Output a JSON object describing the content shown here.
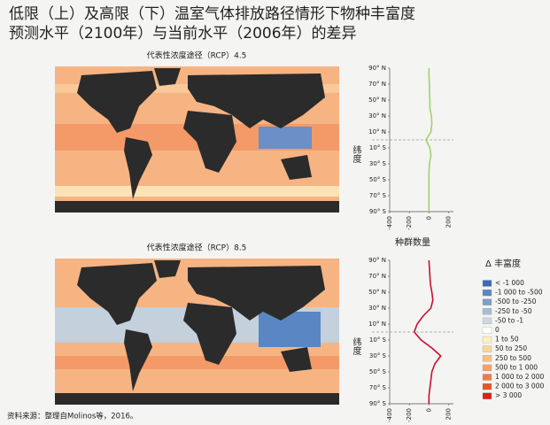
{
  "title_lines": [
    "低限（上）及高限（下）温室气体排放路径情形下物种丰富度",
    "预测水平（2100年）与当前水平（2006年）的差异"
  ],
  "source": "资料来源：整理自Molinos等，2016。",
  "legend": {
    "title": "Δ 丰富度",
    "items": [
      {
        "label": "< -1 000",
        "color": "#3a6db5"
      },
      {
        "label": "-1 000 to -500",
        "color": "#5b86c4"
      },
      {
        "label": "-500 to -250",
        "color": "#7d9fc9"
      },
      {
        "label": "-250 to -50",
        "color": "#a9bcd4"
      },
      {
        "label": "-50 to -1",
        "color": "#cdd6df"
      },
      {
        "label": "0",
        "color": "#ffffff"
      },
      {
        "label": "1 to 50",
        "color": "#fdf0c0"
      },
      {
        "label": "50 to 250",
        "color": "#fbd59a"
      },
      {
        "label": "250 to 500",
        "color": "#f8be85"
      },
      {
        "label": "500 to 1 000",
        "color": "#f4a068"
      },
      {
        "label": "1 000 to 2 000",
        "color": "#ee7a4a"
      },
      {
        "label": "2 000 to 3 000",
        "color": "#e6552f"
      },
      {
        "label": "> 3 000",
        "color": "#d6221a"
      }
    ]
  },
  "chart_data": [
    {
      "type": "line",
      "subtitle": "代表性浓度途径（RCP）4.5",
      "xlabel": "种群数量",
      "ylabel": "纬度",
      "y": [
        90,
        80,
        70,
        60,
        50,
        40,
        30,
        20,
        10,
        0,
        -10,
        -20,
        -30,
        -40,
        -50,
        -60,
        -70,
        -80,
        -90
      ],
      "series": [
        {
          "color": "#9ed36a",
          "values": [
            0,
            0,
            5,
            5,
            10,
            10,
            25,
            30,
            20,
            -30,
            10,
            20,
            5,
            0,
            0,
            0,
            0,
            0,
            0
          ]
        }
      ],
      "xlim": [
        -400,
        250
      ],
      "xticks": [
        -400,
        -200,
        0,
        200
      ],
      "ylim": [
        -90,
        90
      ],
      "hline": 0,
      "yticks": [
        {
          "value": 90,
          "label": "90° N"
        },
        {
          "value": 70,
          "label": "70° N"
        },
        {
          "value": 50,
          "label": "50° N"
        },
        {
          "value": 30,
          "label": "30° N"
        },
        {
          "value": 10,
          "label": "10° N"
        },
        {
          "value": -10,
          "label": "10° S"
        },
        {
          "value": -30,
          "label": "30° S"
        },
        {
          "value": -50,
          "label": "50° S"
        },
        {
          "value": -70,
          "label": "70° S"
        },
        {
          "value": -90,
          "label": "90° S"
        }
      ]
    },
    {
      "type": "line",
      "subtitle": "代表性浓度途径（RCP）8.5",
      "ylabel": "纬度",
      "y": [
        90,
        80,
        70,
        60,
        50,
        40,
        30,
        20,
        10,
        0,
        -10,
        -20,
        -30,
        -40,
        -50,
        -60,
        -70,
        -80,
        -90
      ],
      "series": [
        {
          "color": "#c8102e",
          "values": [
            0,
            5,
            10,
            15,
            30,
            40,
            20,
            -60,
            -120,
            -150,
            -80,
            30,
            120,
            60,
            30,
            20,
            10,
            0,
            0
          ]
        }
      ],
      "xlim": [
        -400,
        250
      ],
      "xticks": [
        -400,
        -200,
        0,
        200
      ],
      "ylim": [
        -90,
        90
      ],
      "hline": 0,
      "yticks": [
        {
          "value": 90,
          "label": "90° N"
        },
        {
          "value": 70,
          "label": "70° N"
        },
        {
          "value": 50,
          "label": "50° N"
        },
        {
          "value": 30,
          "label": "30° N"
        },
        {
          "value": 10,
          "label": "10° N"
        },
        {
          "value": -10,
          "label": "10° S"
        },
        {
          "value": -30,
          "label": "30° S"
        },
        {
          "value": -50,
          "label": "50° S"
        },
        {
          "value": -70,
          "label": "70° S"
        },
        {
          "value": -90,
          "label": "90° S"
        }
      ]
    }
  ]
}
